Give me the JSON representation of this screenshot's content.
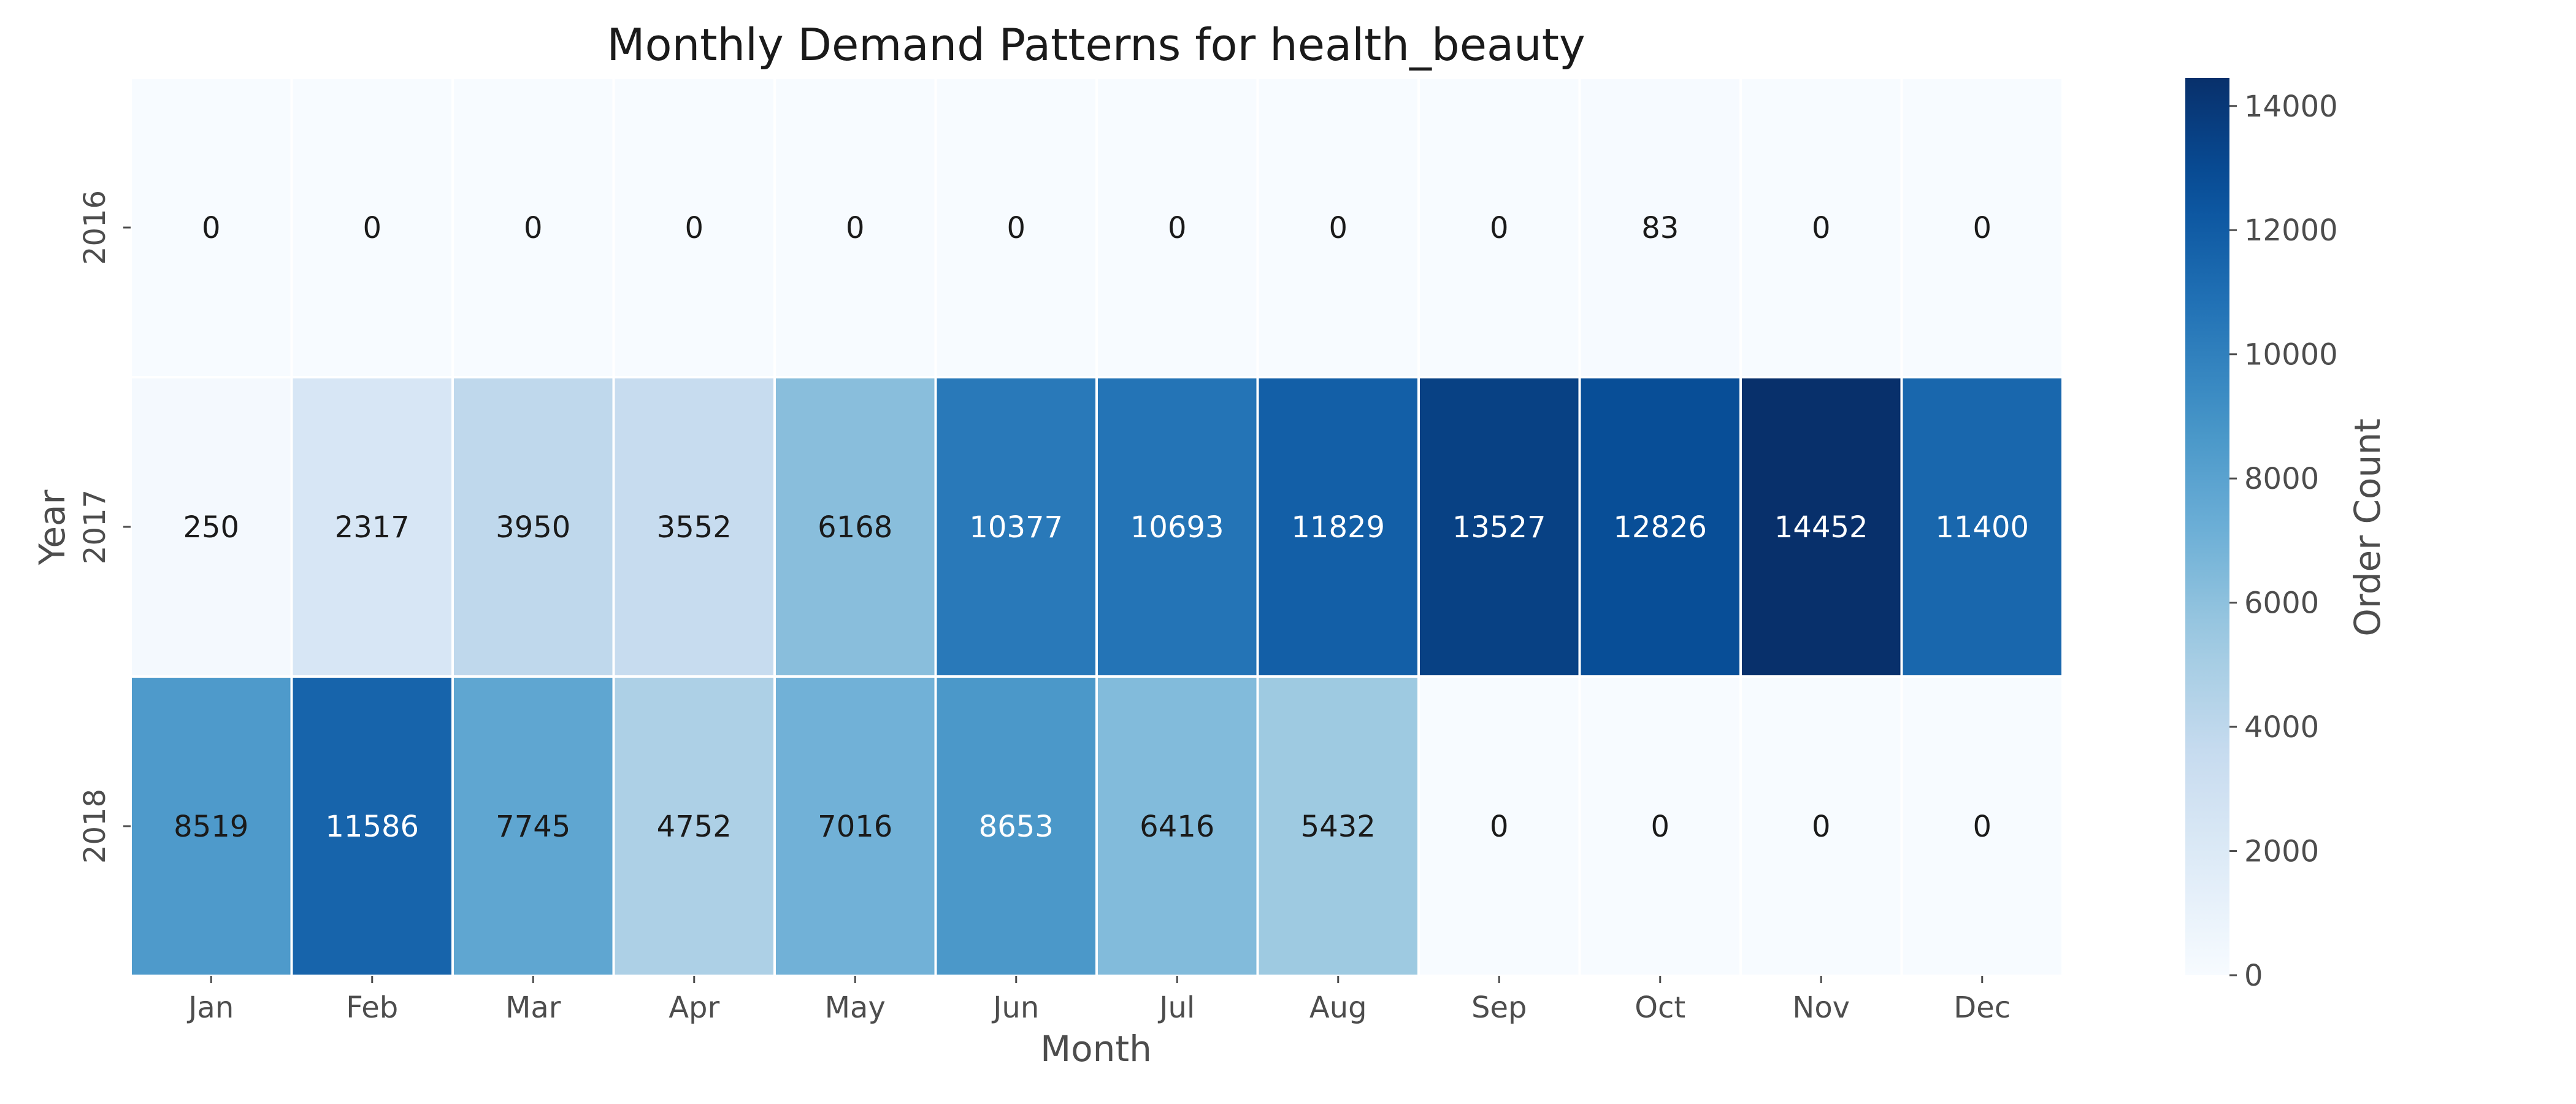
{
  "chart_data": {
    "type": "heatmap",
    "title": "Monthly Demand Patterns for health_beauty",
    "xlabel": "Month",
    "ylabel": "Year",
    "x_categories": [
      "Jan",
      "Feb",
      "Mar",
      "Apr",
      "May",
      "Jun",
      "Jul",
      "Aug",
      "Sep",
      "Oct",
      "Nov",
      "Dec"
    ],
    "y_categories": [
      "2016",
      "2017",
      "2018"
    ],
    "values": [
      [
        0,
        0,
        0,
        0,
        0,
        0,
        0,
        0,
        0,
        83,
        0,
        0
      ],
      [
        250,
        2317,
        3950,
        3552,
        6168,
        10377,
        10693,
        11829,
        13527,
        12826,
        14452,
        11400
      ],
      [
        8519,
        11586,
        7745,
        4752,
        7016,
        8653,
        6416,
        5432,
        0,
        0,
        0,
        0
      ]
    ],
    "colormap": "Blues",
    "color_range": [
      0,
      14452
    ],
    "colorbar": {
      "label": "Order Count",
      "ticks": [
        0,
        2000,
        4000,
        6000,
        8000,
        10000,
        12000,
        14000
      ],
      "tick_labels": [
        "0",
        "2000",
        "4000",
        "6000",
        "8000",
        "10000",
        "12000",
        "14000"
      ]
    },
    "grid": false,
    "colors": {
      "low": "#f7fbff",
      "high": "#08306b",
      "cell_border": "#ffffff"
    }
  }
}
